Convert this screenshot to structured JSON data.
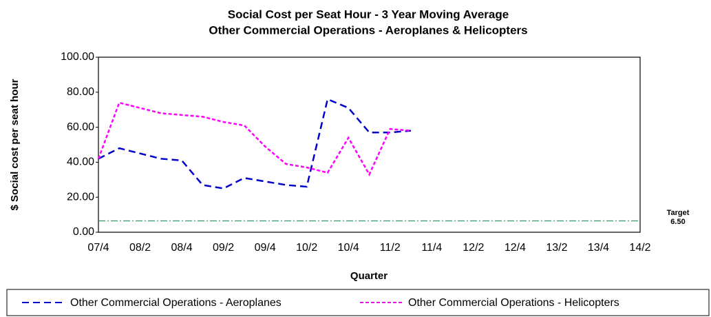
{
  "chart_data": {
    "type": "line",
    "title": "Social Cost per Seat Hour - 3 Year Moving Average",
    "subtitle": "Other Commercial Operations - Aeroplanes & Helicopters",
    "x_label": "Quarter",
    "y_label": "$ Social cost per seat hour",
    "categories": [
      "07/4",
      null,
      "08/2",
      null,
      "08/4",
      null,
      "09/2",
      null,
      "09/4",
      null,
      "10/2",
      null,
      "10/4",
      null,
      "11/2",
      null,
      "11/4",
      null,
      "12/2",
      null,
      "12/4",
      null,
      "13/2",
      null,
      "13/4",
      null,
      "14/2"
    ],
    "series": [
      {
        "name": "Other Commercial Operations - Aeroplanes",
        "color": "#0000cc",
        "values": [
          42,
          48,
          45,
          42,
          41,
          27,
          25,
          31,
          29,
          27,
          26,
          76,
          71,
          57,
          57,
          58,
          null,
          null,
          null,
          null,
          null,
          null,
          null,
          null,
          null,
          null,
          null
        ]
      },
      {
        "name": "Other Commercial Operations - Helicopters",
        "color": "#ff00ff",
        "values": [
          42,
          74,
          71,
          68,
          67,
          66,
          63,
          61,
          49,
          39,
          37,
          34,
          54,
          33,
          59,
          58,
          null,
          null,
          null,
          null,
          null,
          null,
          null,
          null,
          null,
          null,
          null
        ]
      }
    ],
    "target": {
      "label": "Target",
      "value": 6.5,
      "value_label": "6.50",
      "color": "#339966"
    },
    "ylim": [
      0,
      100
    ],
    "yticks": [
      {
        "value": 0,
        "label": "0.00"
      },
      {
        "value": 20,
        "label": "20.00"
      },
      {
        "value": 40,
        "label": "40.00"
      },
      {
        "value": 60,
        "label": "60.00"
      },
      {
        "value": 80,
        "label": "80.00"
      },
      {
        "value": 100,
        "label": "100.00"
      }
    ],
    "grid": false,
    "legend": "bottom"
  }
}
